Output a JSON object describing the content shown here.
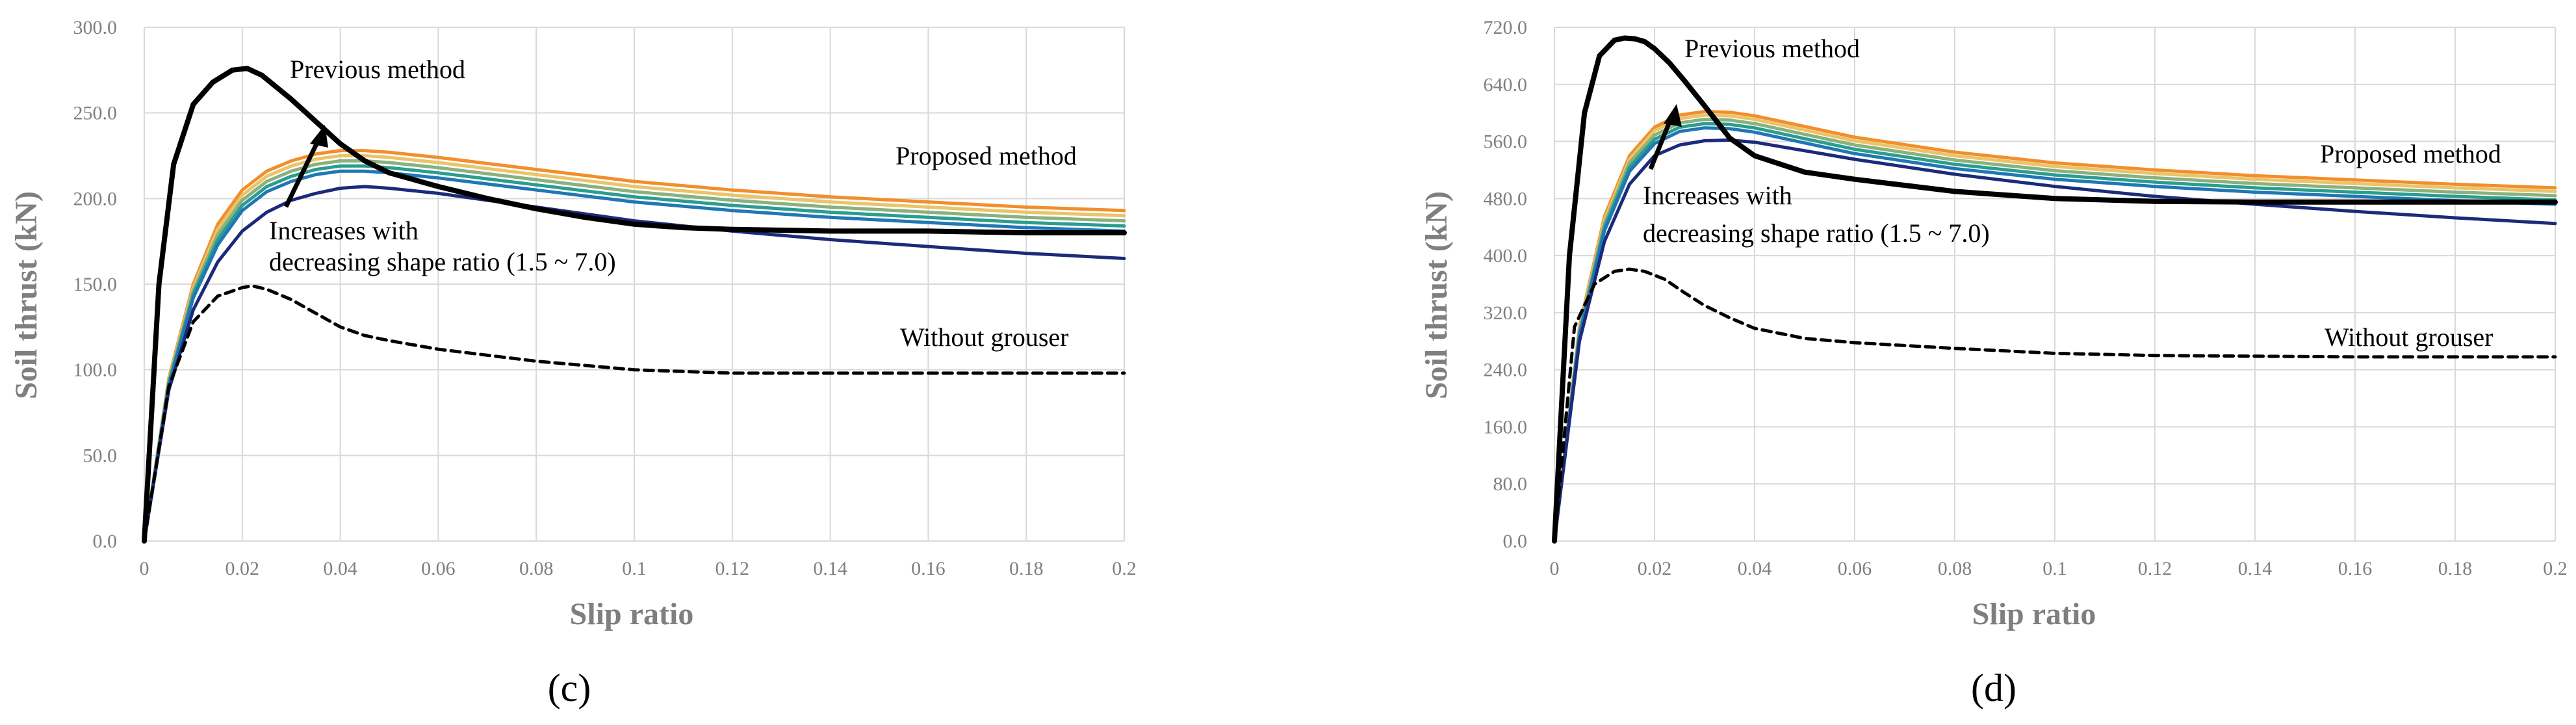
{
  "figure": {
    "panels": [
      {
        "id": "c",
        "label": "(c)",
        "annotations": {
          "previous": "Previous method",
          "proposed": "Proposed method",
          "increase_line1": "Increases with",
          "increase_line2": "decreasing shape ratio (1.5 ~ 7.0)",
          "without": "Without grouser"
        }
      },
      {
        "id": "d",
        "label": "(d)",
        "annotations": {
          "previous": "Previous method",
          "proposed": "Proposed method",
          "increase_line1": "Increases with",
          "increase_line2": "decreasing shape ratio (1.5 ~ 7.0)",
          "without": "Without grouser"
        }
      }
    ]
  },
  "chart_data": [
    {
      "type": "line",
      "panel": "c",
      "title": "",
      "xlabel": "Slip ratio",
      "ylabel": "Soil thrust (kN)",
      "xlim": [
        0,
        0.2
      ],
      "ylim": [
        0,
        300
      ],
      "xticks": [
        0,
        0.02,
        0.04,
        0.06,
        0.08,
        0.1,
        0.12,
        0.14,
        0.16,
        0.18,
        0.2
      ],
      "xtick_labels": [
        "0",
        "0.02",
        "0.04",
        "0.06",
        "0.08",
        "0.1",
        "0.12",
        "0.14",
        "0.16",
        "0.18",
        "0.2"
      ],
      "yticks": [
        0,
        50,
        100,
        150,
        200,
        250,
        300
      ],
      "ytick_labels": [
        "0.0",
        "50.0",
        "100.0",
        "150.0",
        "200.0",
        "250.0",
        "300.0"
      ],
      "series": [
        {
          "name": "Proposed 1",
          "color": "#f28e2b",
          "width": 5,
          "dash": "",
          "x": [
            0,
            0.005,
            0.01,
            0.015,
            0.02,
            0.025,
            0.03,
            0.035,
            0.04,
            0.045,
            0.05,
            0.06,
            0.08,
            0.1,
            0.12,
            0.14,
            0.16,
            0.18,
            0.2
          ],
          "y": [
            0,
            95,
            150,
            185,
            205,
            216,
            222,
            226,
            228,
            228,
            227,
            224,
            217,
            210,
            205,
            201,
            198,
            195,
            193
          ]
        },
        {
          "name": "Proposed 2",
          "color": "#e9c46a",
          "width": 5,
          "dash": "",
          "x": [
            0,
            0.005,
            0.01,
            0.015,
            0.02,
            0.025,
            0.03,
            0.035,
            0.04,
            0.045,
            0.05,
            0.06,
            0.08,
            0.1,
            0.12,
            0.14,
            0.16,
            0.18,
            0.2
          ],
          "y": [
            0,
            94,
            148,
            182,
            202,
            213,
            219,
            223,
            225,
            225,
            224,
            221,
            214,
            207,
            202,
            198,
            195,
            192,
            190
          ]
        },
        {
          "name": "Proposed 3",
          "color": "#8ab17d",
          "width": 5,
          "dash": "",
          "x": [
            0,
            0.005,
            0.01,
            0.015,
            0.02,
            0.025,
            0.03,
            0.035,
            0.04,
            0.045,
            0.05,
            0.06,
            0.08,
            0.1,
            0.12,
            0.14,
            0.16,
            0.18,
            0.2
          ],
          "y": [
            0,
            93,
            146,
            179,
            199,
            210,
            216,
            220,
            222,
            222,
            221,
            218,
            211,
            204,
            199,
            195,
            192,
            189,
            187
          ]
        },
        {
          "name": "Proposed 4",
          "color": "#2a9d8f",
          "width": 5,
          "dash": "",
          "x": [
            0,
            0.005,
            0.01,
            0.015,
            0.02,
            0.025,
            0.03,
            0.035,
            0.04,
            0.045,
            0.05,
            0.06,
            0.08,
            0.1,
            0.12,
            0.14,
            0.16,
            0.18,
            0.2
          ],
          "y": [
            0,
            92,
            144,
            176,
            196,
            207,
            213,
            217,
            219,
            219,
            218,
            215,
            208,
            201,
            196,
            192,
            189,
            186,
            184
          ]
        },
        {
          "name": "Proposed 5",
          "color": "#1f77b4",
          "width": 5,
          "dash": "",
          "x": [
            0,
            0.005,
            0.01,
            0.015,
            0.02,
            0.025,
            0.03,
            0.035,
            0.04,
            0.045,
            0.05,
            0.06,
            0.08,
            0.1,
            0.12,
            0.14,
            0.16,
            0.18,
            0.2
          ],
          "y": [
            0,
            91,
            142,
            173,
            193,
            204,
            210,
            214,
            216,
            216,
            215,
            212,
            205,
            198,
            193,
            189,
            186,
            183,
            181
          ]
        },
        {
          "name": "Proposed 6",
          "color": "#1b2a7a",
          "width": 5,
          "dash": "",
          "x": [
            0,
            0.005,
            0.01,
            0.015,
            0.02,
            0.025,
            0.03,
            0.035,
            0.04,
            0.045,
            0.05,
            0.06,
            0.08,
            0.1,
            0.12,
            0.14,
            0.16,
            0.18,
            0.2
          ],
          "y": [
            0,
            88,
            135,
            163,
            181,
            192,
            199,
            203,
            206,
            207,
            206,
            203,
            195,
            187,
            181,
            176,
            172,
            168,
            165
          ]
        },
        {
          "name": "Previous method",
          "color": "#000000",
          "width": 8,
          "dash": "",
          "x": [
            0,
            0.003,
            0.006,
            0.01,
            0.014,
            0.018,
            0.021,
            0.024,
            0.027,
            0.03,
            0.035,
            0.04,
            0.045,
            0.05,
            0.06,
            0.07,
            0.08,
            0.09,
            0.1,
            0.11,
            0.12,
            0.14,
            0.16,
            0.18,
            0.2
          ],
          "y": [
            0,
            150,
            220,
            255,
            268,
            275,
            276,
            272,
            265,
            258,
            245,
            232,
            222,
            215,
            207,
            200,
            194,
            189,
            185,
            183,
            182,
            181,
            181,
            180,
            180
          ]
        },
        {
          "name": "Without grouser",
          "color": "#000000",
          "width": 5,
          "dash": "14 9",
          "x": [
            0,
            0.005,
            0.01,
            0.015,
            0.02,
            0.022,
            0.025,
            0.03,
            0.035,
            0.04,
            0.045,
            0.05,
            0.06,
            0.08,
            0.1,
            0.12,
            0.14,
            0.16,
            0.18,
            0.2
          ],
          "y": [
            0,
            90,
            128,
            143,
            148,
            149,
            147,
            141,
            133,
            125,
            120,
            117,
            112,
            105,
            100,
            98,
            98,
            98,
            98,
            98
          ]
        }
      ]
    },
    {
      "type": "line",
      "panel": "d",
      "title": "",
      "xlabel": "Slip ratio",
      "ylabel": "Soil thrust (kN)",
      "xlim": [
        0,
        0.2
      ],
      "ylim": [
        0,
        720
      ],
      "xticks": [
        0,
        0.02,
        0.04,
        0.06,
        0.08,
        0.1,
        0.12,
        0.14,
        0.16,
        0.18,
        0.2
      ],
      "xtick_labels": [
        "0",
        "0.02",
        "0.04",
        "0.06",
        "0.08",
        "0.1",
        "0.12",
        "0.14",
        "0.16",
        "0.18",
        "0.2"
      ],
      "yticks": [
        0,
        80,
        160,
        240,
        320,
        400,
        480,
        560,
        640,
        720
      ],
      "ytick_labels": [
        "0.0",
        "80.0",
        "160.0",
        "240.0",
        "320.0",
        "400.0",
        "480.0",
        "560.0",
        "640.0",
        "720.0"
      ],
      "series": [
        {
          "name": "Proposed 1",
          "color": "#f28e2b",
          "width": 5,
          "dash": "",
          "x": [
            0,
            0.005,
            0.01,
            0.015,
            0.02,
            0.025,
            0.03,
            0.035,
            0.04,
            0.05,
            0.06,
            0.08,
            0.1,
            0.12,
            0.14,
            0.16,
            0.18,
            0.2
          ],
          "y": [
            0,
            300,
            455,
            540,
            580,
            597,
            602,
            601,
            596,
            581,
            566,
            545,
            530,
            520,
            512,
            506,
            500,
            495
          ]
        },
        {
          "name": "Proposed 2",
          "color": "#e9c46a",
          "width": 5,
          "dash": "",
          "x": [
            0,
            0.005,
            0.01,
            0.015,
            0.02,
            0.025,
            0.03,
            0.035,
            0.04,
            0.05,
            0.06,
            0.08,
            0.1,
            0.12,
            0.14,
            0.16,
            0.18,
            0.2
          ],
          "y": [
            0,
            297,
            450,
            535,
            575,
            592,
            597,
            596,
            591,
            576,
            561,
            540,
            525,
            515,
            507,
            501,
            495,
            490
          ]
        },
        {
          "name": "Proposed 3",
          "color": "#8ab17d",
          "width": 5,
          "dash": "",
          "x": [
            0,
            0.005,
            0.01,
            0.015,
            0.02,
            0.025,
            0.03,
            0.035,
            0.04,
            0.05,
            0.06,
            0.08,
            0.1,
            0.12,
            0.14,
            0.16,
            0.18,
            0.2
          ],
          "y": [
            0,
            294,
            445,
            530,
            569,
            586,
            591,
            590,
            585,
            570,
            555,
            534,
            519,
            509,
            501,
            495,
            489,
            484
          ]
        },
        {
          "name": "Proposed 4",
          "color": "#2a9d8f",
          "width": 5,
          "dash": "",
          "x": [
            0,
            0.005,
            0.01,
            0.015,
            0.02,
            0.025,
            0.03,
            0.035,
            0.04,
            0.05,
            0.06,
            0.08,
            0.1,
            0.12,
            0.14,
            0.16,
            0.18,
            0.2
          ],
          "y": [
            0,
            291,
            440,
            524,
            563,
            580,
            585,
            584,
            579,
            564,
            549,
            528,
            513,
            503,
            495,
            489,
            483,
            478
          ]
        },
        {
          "name": "Proposed 5",
          "color": "#1f77b4",
          "width": 5,
          "dash": "",
          "x": [
            0,
            0.005,
            0.01,
            0.015,
            0.02,
            0.025,
            0.03,
            0.035,
            0.04,
            0.05,
            0.06,
            0.08,
            0.1,
            0.12,
            0.14,
            0.16,
            0.18,
            0.2
          ],
          "y": [
            0,
            288,
            435,
            518,
            557,
            574,
            579,
            578,
            573,
            558,
            543,
            522,
            507,
            497,
            489,
            483,
            477,
            472
          ]
        },
        {
          "name": "Proposed 6",
          "color": "#1b2a7a",
          "width": 5,
          "dash": "",
          "x": [
            0,
            0.005,
            0.01,
            0.015,
            0.02,
            0.025,
            0.03,
            0.035,
            0.04,
            0.05,
            0.06,
            0.08,
            0.1,
            0.12,
            0.14,
            0.16,
            0.18,
            0.2
          ],
          "y": [
            0,
            280,
            420,
            500,
            540,
            555,
            561,
            562,
            559,
            547,
            535,
            514,
            497,
            483,
            472,
            462,
            453,
            445
          ]
        },
        {
          "name": "Previous method",
          "color": "#000000",
          "width": 8,
          "dash": "",
          "x": [
            0,
            0.003,
            0.006,
            0.009,
            0.012,
            0.014,
            0.016,
            0.018,
            0.02,
            0.023,
            0.026,
            0.03,
            0.035,
            0.04,
            0.05,
            0.06,
            0.08,
            0.1,
            0.12,
            0.14,
            0.16,
            0.18,
            0.2
          ],
          "y": [
            0,
            400,
            600,
            680,
            702,
            705,
            704,
            700,
            690,
            670,
            645,
            610,
            565,
            540,
            517,
            507,
            490,
            480,
            476,
            475,
            475,
            475,
            475
          ]
        },
        {
          "name": "Without grouser",
          "color": "#000000",
          "width": 5,
          "dash": "14 9",
          "x": [
            0,
            0.004,
            0.008,
            0.012,
            0.015,
            0.018,
            0.022,
            0.026,
            0.03,
            0.035,
            0.04,
            0.05,
            0.06,
            0.08,
            0.1,
            0.12,
            0.14,
            0.16,
            0.18,
            0.2
          ],
          "y": [
            0,
            300,
            360,
            378,
            381,
            378,
            367,
            348,
            330,
            313,
            298,
            284,
            278,
            270,
            263,
            260,
            259,
            258,
            258,
            258
          ]
        }
      ]
    }
  ]
}
